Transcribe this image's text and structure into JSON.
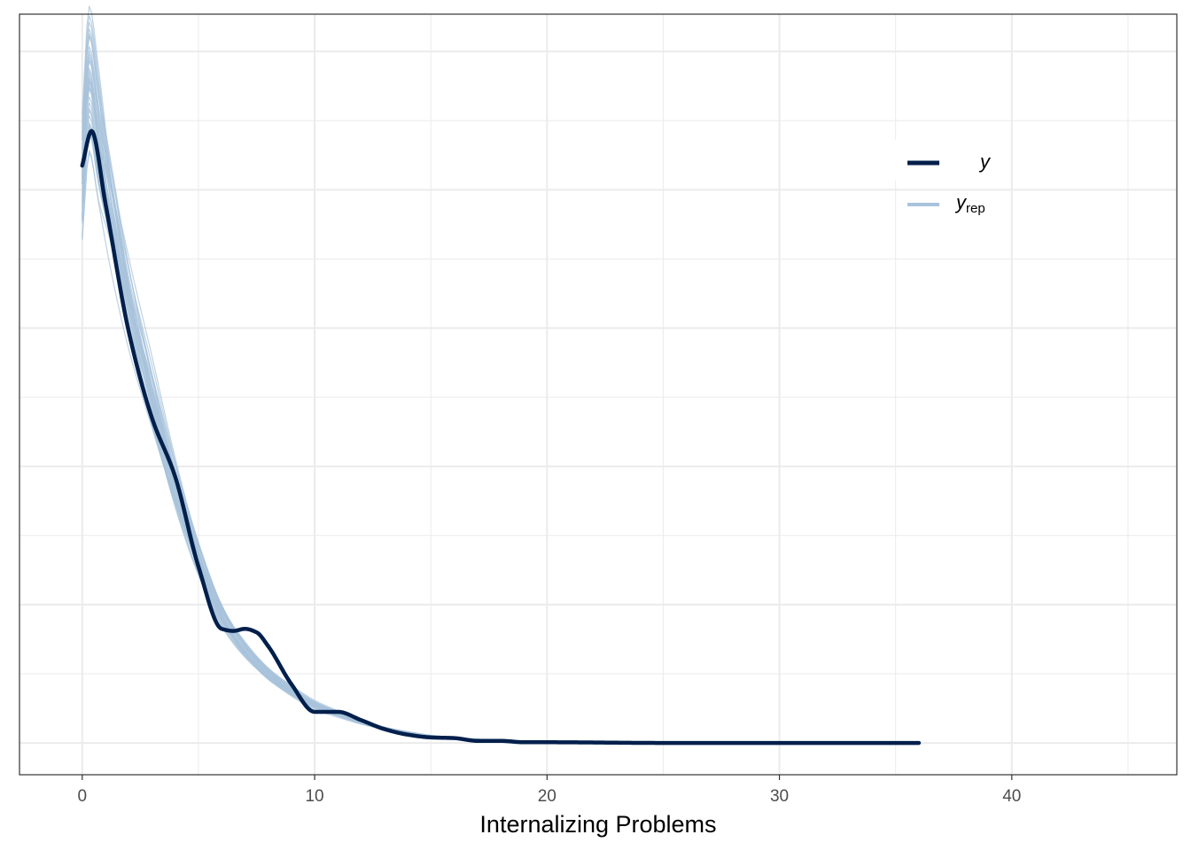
{
  "chart_data": {
    "type": "line",
    "title": "",
    "xlabel": "Internalizing Problems",
    "ylabel": "",
    "xlim": [
      -2.7,
      47.1
    ],
    "ylim": [
      -0.0046,
      0.1054
    ],
    "x_ticks": [
      0,
      10,
      20,
      30,
      40
    ],
    "x_tick_labels": [
      "0",
      "10",
      "20",
      "30",
      "40"
    ],
    "y_ticks_labeled": false,
    "grid": true,
    "legend": {
      "placement": "top-right",
      "entries": [
        {
          "key": "y",
          "label": "y",
          "subscript": ""
        },
        {
          "key": "yrep",
          "label": "y",
          "subscript": "rep"
        }
      ]
    },
    "colors": {
      "y": "#011f4b",
      "yrep": "#a8c3db",
      "grid": "#ebebeb",
      "border": "#333333"
    },
    "y_observed": {
      "name": "y",
      "x": [
        0,
        0.4,
        1,
        2,
        3,
        4,
        5,
        6,
        6.5,
        7,
        7.5,
        8,
        9,
        10,
        11,
        12,
        13,
        14,
        15,
        16,
        17,
        18,
        19,
        20,
        25,
        30,
        36
      ],
      "y": [
        0.0835,
        0.0885,
        0.078,
        0.0595,
        0.047,
        0.0385,
        0.0255,
        0.0165,
        0.0162,
        0.0165,
        0.016,
        0.014,
        0.0085,
        0.0045,
        0.0045,
        0.0033,
        0.002,
        0.0012,
        0.0008,
        0.0007,
        0.0003,
        0.0003,
        0.0001,
        0.0001,
        0.0,
        0.0,
        0.0
      ]
    },
    "y_replicated": {
      "name": "yrep",
      "n_draws": 40,
      "x": [
        0,
        0.3,
        0.7,
        1.2,
        2,
        3,
        4,
        5,
        6,
        7,
        8,
        9,
        10,
        11,
        12,
        13,
        14,
        15,
        16,
        17,
        18,
        20,
        22,
        25,
        30,
        36
      ],
      "y_mean": [
        0.081,
        0.095,
        0.087,
        0.078,
        0.064,
        0.05,
        0.037,
        0.0265,
        0.0185,
        0.0135,
        0.01,
        0.0075,
        0.0055,
        0.0042,
        0.003,
        0.0021,
        0.0015,
        0.001,
        0.0007,
        0.0005,
        0.0003,
        0.00015,
        0.0001,
        5e-05,
        0.0,
        0.0
      ]
    }
  }
}
